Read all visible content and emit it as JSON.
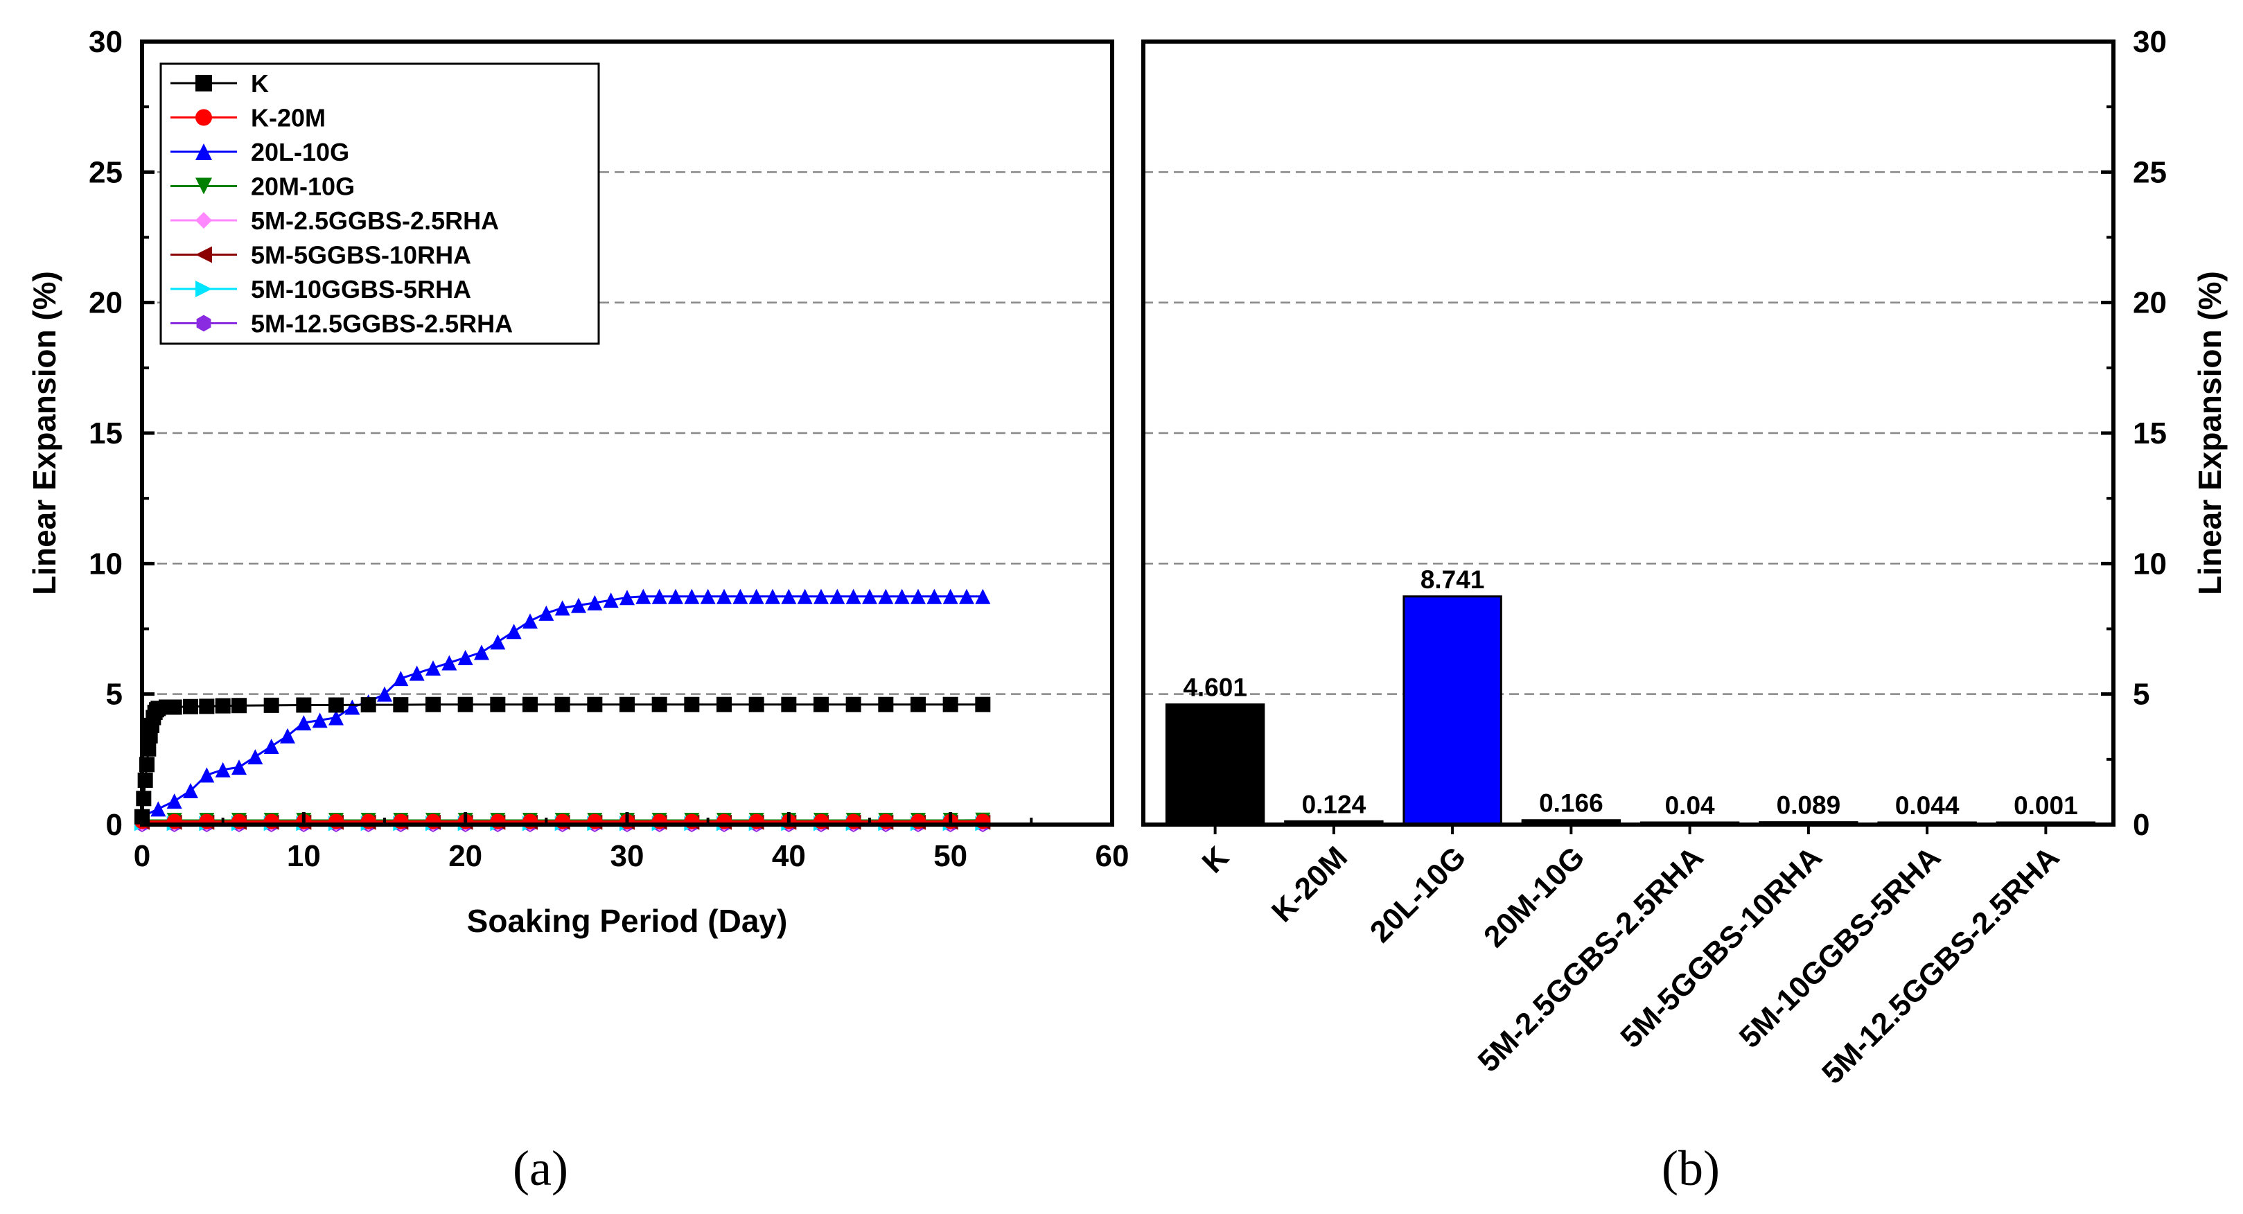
{
  "chart_data": [
    {
      "type": "line",
      "panel_label": "(a)",
      "xlabel": "Soaking Period (Day)",
      "ylabel": "Linear Expansion (%)",
      "xlim": [
        0,
        60
      ],
      "ylim": [
        0,
        30
      ],
      "xticks": [
        "0",
        "10",
        "20",
        "30",
        "40",
        "50",
        "60"
      ],
      "yticks": [
        "0",
        "5",
        "10",
        "15",
        "20",
        "25",
        "30"
      ],
      "gridlines_y": [
        5,
        10,
        15,
        20,
        25
      ],
      "legend_position": "top-left",
      "series": [
        {
          "name": "K",
          "color": "#000000",
          "marker": "square",
          "x": [
            0,
            0.1,
            0.2,
            0.3,
            0.4,
            0.5,
            0.6,
            0.7,
            0.8,
            0.9,
            1.0,
            1.5,
            2,
            3,
            4,
            5,
            6,
            8,
            10,
            12,
            14,
            16,
            18,
            20,
            22,
            24,
            26,
            28,
            30,
            32,
            34,
            36,
            38,
            40,
            42,
            44,
            46,
            48,
            50,
            52
          ],
          "y": [
            0.3,
            1.0,
            1.7,
            2.3,
            2.9,
            3.4,
            3.8,
            4.1,
            4.3,
            4.4,
            4.45,
            4.5,
            4.5,
            4.52,
            4.53,
            4.55,
            4.56,
            4.57,
            4.58,
            4.58,
            4.59,
            4.59,
            4.6,
            4.6,
            4.6,
            4.6,
            4.6,
            4.6,
            4.6,
            4.6,
            4.6,
            4.6,
            4.6,
            4.6,
            4.6,
            4.6,
            4.6,
            4.6,
            4.6,
            4.601
          ]
        },
        {
          "name": "K-20M",
          "color": "#ff0000",
          "marker": "circle",
          "x": [
            0,
            2,
            4,
            6,
            8,
            10,
            12,
            14,
            16,
            18,
            20,
            22,
            24,
            26,
            28,
            30,
            32,
            34,
            36,
            38,
            40,
            42,
            44,
            46,
            48,
            50,
            52
          ],
          "y": [
            0.12,
            0.12,
            0.12,
            0.12,
            0.12,
            0.12,
            0.12,
            0.12,
            0.12,
            0.12,
            0.12,
            0.12,
            0.12,
            0.12,
            0.12,
            0.12,
            0.12,
            0.12,
            0.12,
            0.12,
            0.12,
            0.12,
            0.12,
            0.12,
            0.12,
            0.12,
            0.124
          ]
        },
        {
          "name": "20L-10G",
          "color": "#0000ff",
          "marker": "triangle-up",
          "x": [
            0,
            1,
            2,
            3,
            4,
            5,
            6,
            7,
            8,
            9,
            10,
            11,
            12,
            13,
            14,
            15,
            16,
            17,
            18,
            19,
            20,
            21,
            22,
            23,
            24,
            25,
            26,
            27,
            28,
            29,
            30,
            31,
            32,
            33,
            34,
            35,
            36,
            37,
            38,
            39,
            40,
            41,
            42,
            43,
            44,
            45,
            46,
            47,
            48,
            49,
            50,
            51,
            52
          ],
          "y": [
            0.3,
            0.6,
            0.9,
            1.3,
            1.9,
            2.1,
            2.2,
            2.6,
            3.0,
            3.4,
            3.9,
            4.0,
            4.1,
            4.5,
            4.7,
            5.0,
            5.6,
            5.8,
            6.0,
            6.2,
            6.4,
            6.6,
            7.0,
            7.4,
            7.8,
            8.1,
            8.3,
            8.4,
            8.5,
            8.6,
            8.7,
            8.74,
            8.74,
            8.74,
            8.74,
            8.74,
            8.74,
            8.74,
            8.74,
            8.74,
            8.74,
            8.74,
            8.74,
            8.74,
            8.74,
            8.74,
            8.74,
            8.74,
            8.74,
            8.74,
            8.74,
            8.74,
            8.741
          ]
        },
        {
          "name": "20M-10G",
          "color": "#008000",
          "marker": "triangle-down",
          "x": [
            0,
            2,
            4,
            6,
            8,
            10,
            12,
            14,
            16,
            18,
            20,
            22,
            24,
            26,
            28,
            30,
            32,
            34,
            36,
            38,
            40,
            42,
            44,
            46,
            48,
            50,
            52
          ],
          "y": [
            0.16,
            0.16,
            0.16,
            0.16,
            0.16,
            0.16,
            0.16,
            0.16,
            0.16,
            0.16,
            0.16,
            0.16,
            0.16,
            0.16,
            0.16,
            0.16,
            0.16,
            0.16,
            0.16,
            0.16,
            0.16,
            0.16,
            0.16,
            0.16,
            0.16,
            0.16,
            0.166
          ]
        },
        {
          "name": "5M-2.5GGBS-2.5RHA",
          "color": "#ff88ff",
          "marker": "diamond",
          "x": [
            0,
            2,
            4,
            6,
            8,
            10,
            12,
            14,
            16,
            18,
            20,
            22,
            24,
            26,
            28,
            30,
            32,
            34,
            36,
            38,
            40,
            42,
            44,
            46,
            48,
            50,
            52
          ],
          "y": [
            0.04,
            0.04,
            0.04,
            0.04,
            0.04,
            0.04,
            0.04,
            0.04,
            0.04,
            0.04,
            0.04,
            0.04,
            0.04,
            0.04,
            0.04,
            0.04,
            0.04,
            0.04,
            0.04,
            0.04,
            0.04,
            0.04,
            0.04,
            0.04,
            0.04,
            0.04,
            0.04
          ]
        },
        {
          "name": "5M-5GGBS-10RHA",
          "color": "#8b0000",
          "marker": "triangle-left",
          "x": [
            0,
            2,
            4,
            6,
            8,
            10,
            12,
            14,
            16,
            18,
            20,
            22,
            24,
            26,
            28,
            30,
            32,
            34,
            36,
            38,
            40,
            42,
            44,
            46,
            48,
            50,
            52
          ],
          "y": [
            0.089,
            0.089,
            0.089,
            0.089,
            0.089,
            0.089,
            0.089,
            0.089,
            0.089,
            0.089,
            0.089,
            0.089,
            0.089,
            0.089,
            0.089,
            0.089,
            0.089,
            0.089,
            0.089,
            0.089,
            0.089,
            0.089,
            0.089,
            0.089,
            0.089,
            0.089,
            0.089
          ]
        },
        {
          "name": "5M-10GGBS-5RHA",
          "color": "#00e5ff",
          "marker": "triangle-right",
          "x": [
            0,
            2,
            4,
            6,
            8,
            10,
            12,
            14,
            16,
            18,
            20,
            22,
            24,
            26,
            28,
            30,
            32,
            34,
            36,
            38,
            40,
            42,
            44,
            46,
            48,
            50,
            52
          ],
          "y": [
            0.044,
            0.044,
            0.044,
            0.044,
            0.044,
            0.044,
            0.044,
            0.044,
            0.044,
            0.044,
            0.044,
            0.044,
            0.044,
            0.044,
            0.044,
            0.044,
            0.044,
            0.044,
            0.044,
            0.044,
            0.044,
            0.044,
            0.044,
            0.044,
            0.044,
            0.044,
            0.044
          ]
        },
        {
          "name": "5M-12.5GGBS-2.5RHA",
          "color": "#8a2be2",
          "marker": "hexagon",
          "x": [
            0,
            2,
            4,
            6,
            8,
            10,
            12,
            14,
            16,
            18,
            20,
            22,
            24,
            26,
            28,
            30,
            32,
            34,
            36,
            38,
            40,
            42,
            44,
            46,
            48,
            50,
            52
          ],
          "y": [
            0.001,
            0.001,
            0.001,
            0.001,
            0.001,
            0.001,
            0.001,
            0.001,
            0.001,
            0.001,
            0.001,
            0.001,
            0.001,
            0.001,
            0.001,
            0.001,
            0.001,
            0.001,
            0.001,
            0.001,
            0.001,
            0.001,
            0.001,
            0.001,
            0.001,
            0.001,
            0.001
          ]
        }
      ]
    },
    {
      "type": "bar",
      "panel_label": "(b)",
      "ylabel": "Linear Expansion (%)",
      "ylim": [
        0,
        30
      ],
      "yticks": [
        "0",
        "5",
        "10",
        "15",
        "20",
        "25",
        "30"
      ],
      "gridlines_y": [
        5,
        10,
        15,
        20,
        25
      ],
      "categories": [
        "K",
        "K-20M",
        "20L-10G",
        "20M-10G",
        "5M-2.5GGBS-2.5RHA",
        "5M-5GGBS-10RHA",
        "5M-10GGBS-5RHA",
        "5M-12.5GGBS-2.5RHA"
      ],
      "values": [
        4.601,
        0.124,
        8.741,
        0.166,
        0.04,
        0.089,
        0.044,
        0.001
      ],
      "value_labels": [
        "4.601",
        "0.124",
        "8.741",
        "0.166",
        "0.04",
        "0.089",
        "0.044",
        "0.001"
      ],
      "colors": [
        "#000000",
        "#000000",
        "#0000ff",
        "#000000",
        "#000000",
        "#000000",
        "#000000",
        "#000000"
      ]
    }
  ]
}
